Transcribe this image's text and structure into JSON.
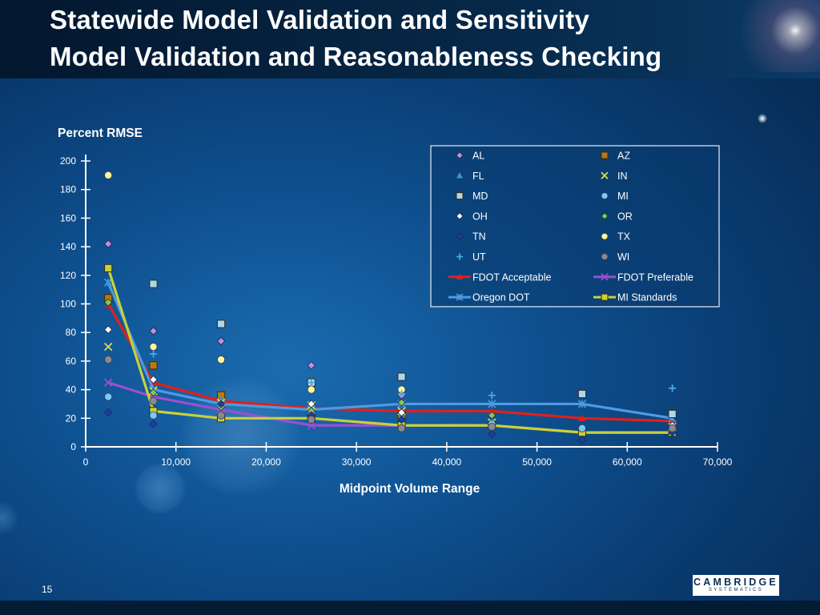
{
  "slide": {
    "title_line1": "Statewide Model Validation and Sensitivity",
    "title_line2": "Model Validation and Reasonableness Checking",
    "page_number": "15",
    "logo_text": "CAMBRIDGE",
    "logo_subtext": "SYSTEMATICS"
  },
  "chart_data": {
    "type": "scatter",
    "title": "",
    "ylabel": "Percent RMSE",
    "xlabel": "Midpoint Volume Range",
    "xlim": [
      0,
      70000
    ],
    "ylim": [
      0,
      200
    ],
    "x_ticks": [
      0,
      10000,
      20000,
      30000,
      40000,
      50000,
      60000,
      70000
    ],
    "x_tick_labels": [
      "0",
      "10,000",
      "20,000",
      "30,000",
      "40,000",
      "50,000",
      "60,000",
      "70,000"
    ],
    "y_ticks": [
      0,
      20,
      40,
      60,
      80,
      100,
      120,
      140,
      160,
      180,
      200
    ],
    "y_tick_labels": [
      "0",
      "20",
      "40",
      "60",
      "80",
      "100",
      "120",
      "140",
      "160",
      "180",
      "200"
    ],
    "grid": false,
    "legend_position": "top-right",
    "series": [
      {
        "name": "AL",
        "marker": "diamond",
        "color": "#c58ee0",
        "line": false,
        "points": [
          [
            2500,
            142
          ],
          [
            7500,
            81
          ],
          [
            15000,
            74
          ],
          [
            25000,
            57
          ],
          [
            35000,
            36
          ]
        ]
      },
      {
        "name": "AZ",
        "marker": "square",
        "color": "#b87a10",
        "line": false,
        "points": [
          [
            2500,
            104
          ],
          [
            7500,
            57
          ],
          [
            15000,
            36
          ],
          [
            35000,
            22
          ]
        ]
      },
      {
        "name": "FL",
        "marker": "triangle",
        "color": "#3c98d6",
        "line": false,
        "points": [
          [
            2500,
            115
          ],
          [
            7500,
            40
          ],
          [
            15000,
            33
          ],
          [
            25000,
            27
          ],
          [
            35000,
            21
          ],
          [
            45000,
            18
          ]
        ]
      },
      {
        "name": "IN",
        "marker": "x",
        "color": "#e0d84a",
        "line": false,
        "points": [
          [
            2500,
            70
          ],
          [
            7500,
            39
          ],
          [
            15000,
            31
          ],
          [
            25000,
            29
          ],
          [
            35000,
            25
          ],
          [
            45000,
            17
          ],
          [
            65000,
            14
          ]
        ]
      },
      {
        "name": "MD",
        "marker": "square",
        "color": "#a9d8f0",
        "line": false,
        "points": [
          [
            7500,
            114
          ],
          [
            15000,
            86
          ],
          [
            25000,
            45
          ],
          [
            35000,
            49
          ],
          [
            55000,
            37
          ],
          [
            65000,
            23
          ]
        ]
      },
      {
        "name": "MI",
        "marker": "circle",
        "color": "#7cc8f2",
        "line": false,
        "points": [
          [
            2500,
            35
          ],
          [
            7500,
            22
          ],
          [
            25000,
            24
          ],
          [
            45000,
            16
          ],
          [
            55000,
            13
          ]
        ]
      },
      {
        "name": "OH",
        "marker": "diamond",
        "color": "#ffffff",
        "line": false,
        "points": [
          [
            2500,
            82
          ],
          [
            7500,
            47
          ],
          [
            25000,
            30
          ],
          [
            35000,
            24
          ],
          [
            65000,
            15
          ]
        ]
      },
      {
        "name": "OR",
        "marker": "diamond",
        "color": "#7fc95a",
        "line": false,
        "points": [
          [
            2500,
            101
          ],
          [
            7500,
            38
          ],
          [
            15000,
            28
          ],
          [
            25000,
            25
          ],
          [
            35000,
            31
          ],
          [
            45000,
            22
          ]
        ]
      },
      {
        "name": "TN",
        "marker": "diamond",
        "color": "#1a3fa8",
        "line": false,
        "points": [
          [
            2500,
            24
          ],
          [
            7500,
            16
          ],
          [
            15000,
            30
          ],
          [
            25000,
            22
          ],
          [
            35000,
            19
          ],
          [
            45000,
            9
          ],
          [
            55000,
            5
          ],
          [
            65000,
            10
          ]
        ]
      },
      {
        "name": "TX",
        "marker": "circle",
        "color": "#fff79a",
        "line": false,
        "points": [
          [
            2500,
            190
          ],
          [
            7500,
            70
          ],
          [
            15000,
            61
          ],
          [
            25000,
            40
          ],
          [
            35000,
            40
          ]
        ]
      },
      {
        "name": "UT",
        "marker": "plus",
        "color": "#4aa8e8",
        "line": false,
        "points": [
          [
            7500,
            65
          ],
          [
            25000,
            45
          ],
          [
            35000,
            37
          ],
          [
            45000,
            36
          ],
          [
            65000,
            41
          ]
        ]
      },
      {
        "name": "WI",
        "marker": "circle",
        "color": "#8a8a8a",
        "line": false,
        "points": [
          [
            2500,
            61
          ],
          [
            7500,
            32
          ],
          [
            15000,
            22
          ],
          [
            25000,
            19
          ],
          [
            35000,
            13
          ],
          [
            45000,
            14
          ],
          [
            65000,
            13
          ]
        ]
      },
      {
        "name": "FDOT Acceptable",
        "marker": "triangle",
        "color": "#e0201a",
        "line": true,
        "points": [
          [
            2500,
            100
          ],
          [
            7500,
            45
          ],
          [
            15000,
            32
          ],
          [
            25000,
            27
          ],
          [
            35000,
            25
          ],
          [
            45000,
            25
          ],
          [
            55000,
            20
          ],
          [
            65000,
            18
          ]
        ]
      },
      {
        "name": "FDOT Preferable",
        "marker": "x",
        "color": "#9b4fd0",
        "line": true,
        "points": [
          [
            2500,
            45
          ],
          [
            7500,
            35
          ],
          [
            15000,
            26
          ],
          [
            25000,
            15
          ],
          [
            35000,
            15
          ],
          [
            45000,
            15
          ],
          [
            55000,
            10
          ],
          [
            65000,
            10
          ]
        ]
      },
      {
        "name": "Oregon DOT",
        "marker": "asterisk",
        "color": "#4f9ae0",
        "line": true,
        "points": [
          [
            2500,
            115
          ],
          [
            7500,
            40
          ],
          [
            15000,
            30
          ],
          [
            25000,
            26
          ],
          [
            35000,
            30
          ],
          [
            45000,
            30
          ],
          [
            55000,
            30
          ],
          [
            65000,
            20
          ]
        ]
      },
      {
        "name": "MI Standards",
        "marker": "square",
        "color": "#c8d13a",
        "line": true,
        "points": [
          [
            2500,
            125
          ],
          [
            7500,
            25
          ],
          [
            15000,
            20
          ],
          [
            25000,
            20
          ],
          [
            35000,
            15
          ],
          [
            45000,
            15
          ],
          [
            55000,
            10
          ],
          [
            65000,
            10
          ]
        ]
      }
    ]
  }
}
